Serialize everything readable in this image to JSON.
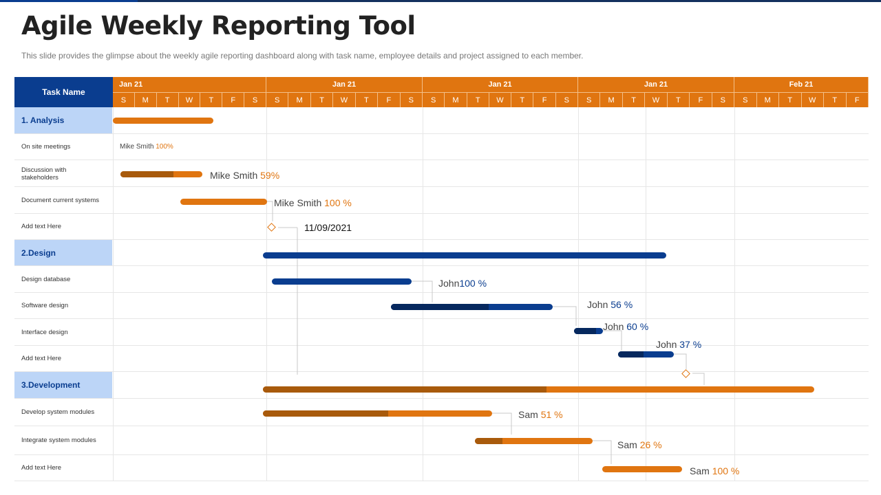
{
  "title": "Agile Weekly Reporting Tool",
  "subtitle": "This slide provides the glimpse about the weekly agile reporting dashboard along with task name, employee details and project assigned to each member.",
  "header": {
    "task_name": "Task Name",
    "weeks": [
      "Jan 21",
      "Jan 21",
      "Jan 21",
      "Jan 21",
      "Feb  21"
    ],
    "days": [
      "S",
      "M",
      "T",
      "W",
      "T",
      "F",
      "S",
      "S",
      "M",
      "T",
      "W",
      "T",
      "F",
      "S",
      "S",
      "M",
      "T",
      "W",
      "T",
      "F",
      "S",
      "S",
      "M",
      "T",
      "W",
      "T",
      "F",
      "S",
      "S",
      "M",
      "T",
      "W",
      "T",
      "F"
    ]
  },
  "colors": {
    "orange": "#e07510",
    "blue": "#0a3d8f",
    "group_bg": "#bcd5f7"
  },
  "rows": [
    {
      "name": "1. Analysis",
      "group": true
    },
    {
      "name": "On site meetings",
      "person": "Mike Smith",
      "progress": "100%"
    },
    {
      "name": "Discussion with stakeholders",
      "person": "Mike Smith",
      "progress": "59%"
    },
    {
      "name": "Document current systems",
      "person": "Mike Smith",
      "progress": "100 %"
    },
    {
      "name": "Add  text Here",
      "milestone": "11/09/2021"
    },
    {
      "name": "2.Design",
      "group": true
    },
    {
      "name": "Design database",
      "person": "John",
      "progress": "100 %"
    },
    {
      "name": "Software design",
      "person": "John",
      "progress": "56 %"
    },
    {
      "name": "Interface design",
      "person": "John",
      "progress": "60 %"
    },
    {
      "name": "Add  text Here",
      "person": "John",
      "progress": "37 %"
    },
    {
      "name": "3.Development",
      "group": true
    },
    {
      "name": "Develop system modules",
      "person": "Sam",
      "progress": "51 %"
    },
    {
      "name": "Integrate system modules",
      "person": "Sam",
      "progress": "26 %"
    },
    {
      "name": "Add  text Here",
      "person": "Sam",
      "progress": "100 %"
    }
  ]
}
